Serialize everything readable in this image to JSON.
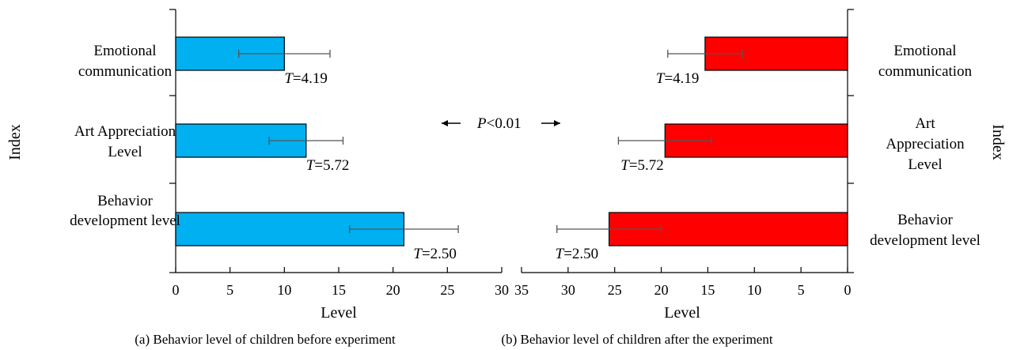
{
  "chart_data": [
    {
      "type": "bar",
      "orientation": "horizontal",
      "caption": "(a) Behavior level of children before experiment",
      "xlabel": "Level",
      "ylabel": "Index",
      "xlim": [
        0,
        30
      ],
      "xticks": [
        "0",
        "5",
        "10",
        "15",
        "20",
        "25",
        "30"
      ],
      "categories": [
        [
          "Emotional",
          "communication"
        ],
        [
          "Art Appreciation",
          "Level"
        ],
        [
          "Behavior",
          "development level"
        ]
      ],
      "values": [
        10,
        12,
        21
      ],
      "errors": [
        4.2,
        3.4,
        5.0
      ],
      "stats": [
        "=4.19",
        "=5.72",
        "=2.50"
      ],
      "stat_symbol": "T",
      "color": "#00B0F0"
    },
    {
      "type": "bar",
      "orientation": "horizontal",
      "reversed_x": true,
      "caption": "(b) Behavior level of children after the experiment",
      "xlabel": "Level",
      "ylabel": "Index",
      "xlim": [
        0,
        35
      ],
      "xticks": [
        "35",
        "30",
        "25",
        "20",
        "15",
        "10",
        "5",
        "0"
      ],
      "categories": [
        [
          "Emotional",
          "communication"
        ],
        [
          "Art",
          "Appreciation",
          "Level"
        ],
        [
          "Behavior",
          "development level"
        ]
      ],
      "values": [
        15.3,
        19.6,
        25.6
      ],
      "errors": [
        4.0,
        5.0,
        5.6
      ],
      "stats": [
        "=4.19",
        "=5.72",
        "=2.50"
      ],
      "stat_symbol": "T",
      "color": "#FF0000"
    }
  ],
  "significance": {
    "symbol": "P",
    "text": "<0.01"
  }
}
